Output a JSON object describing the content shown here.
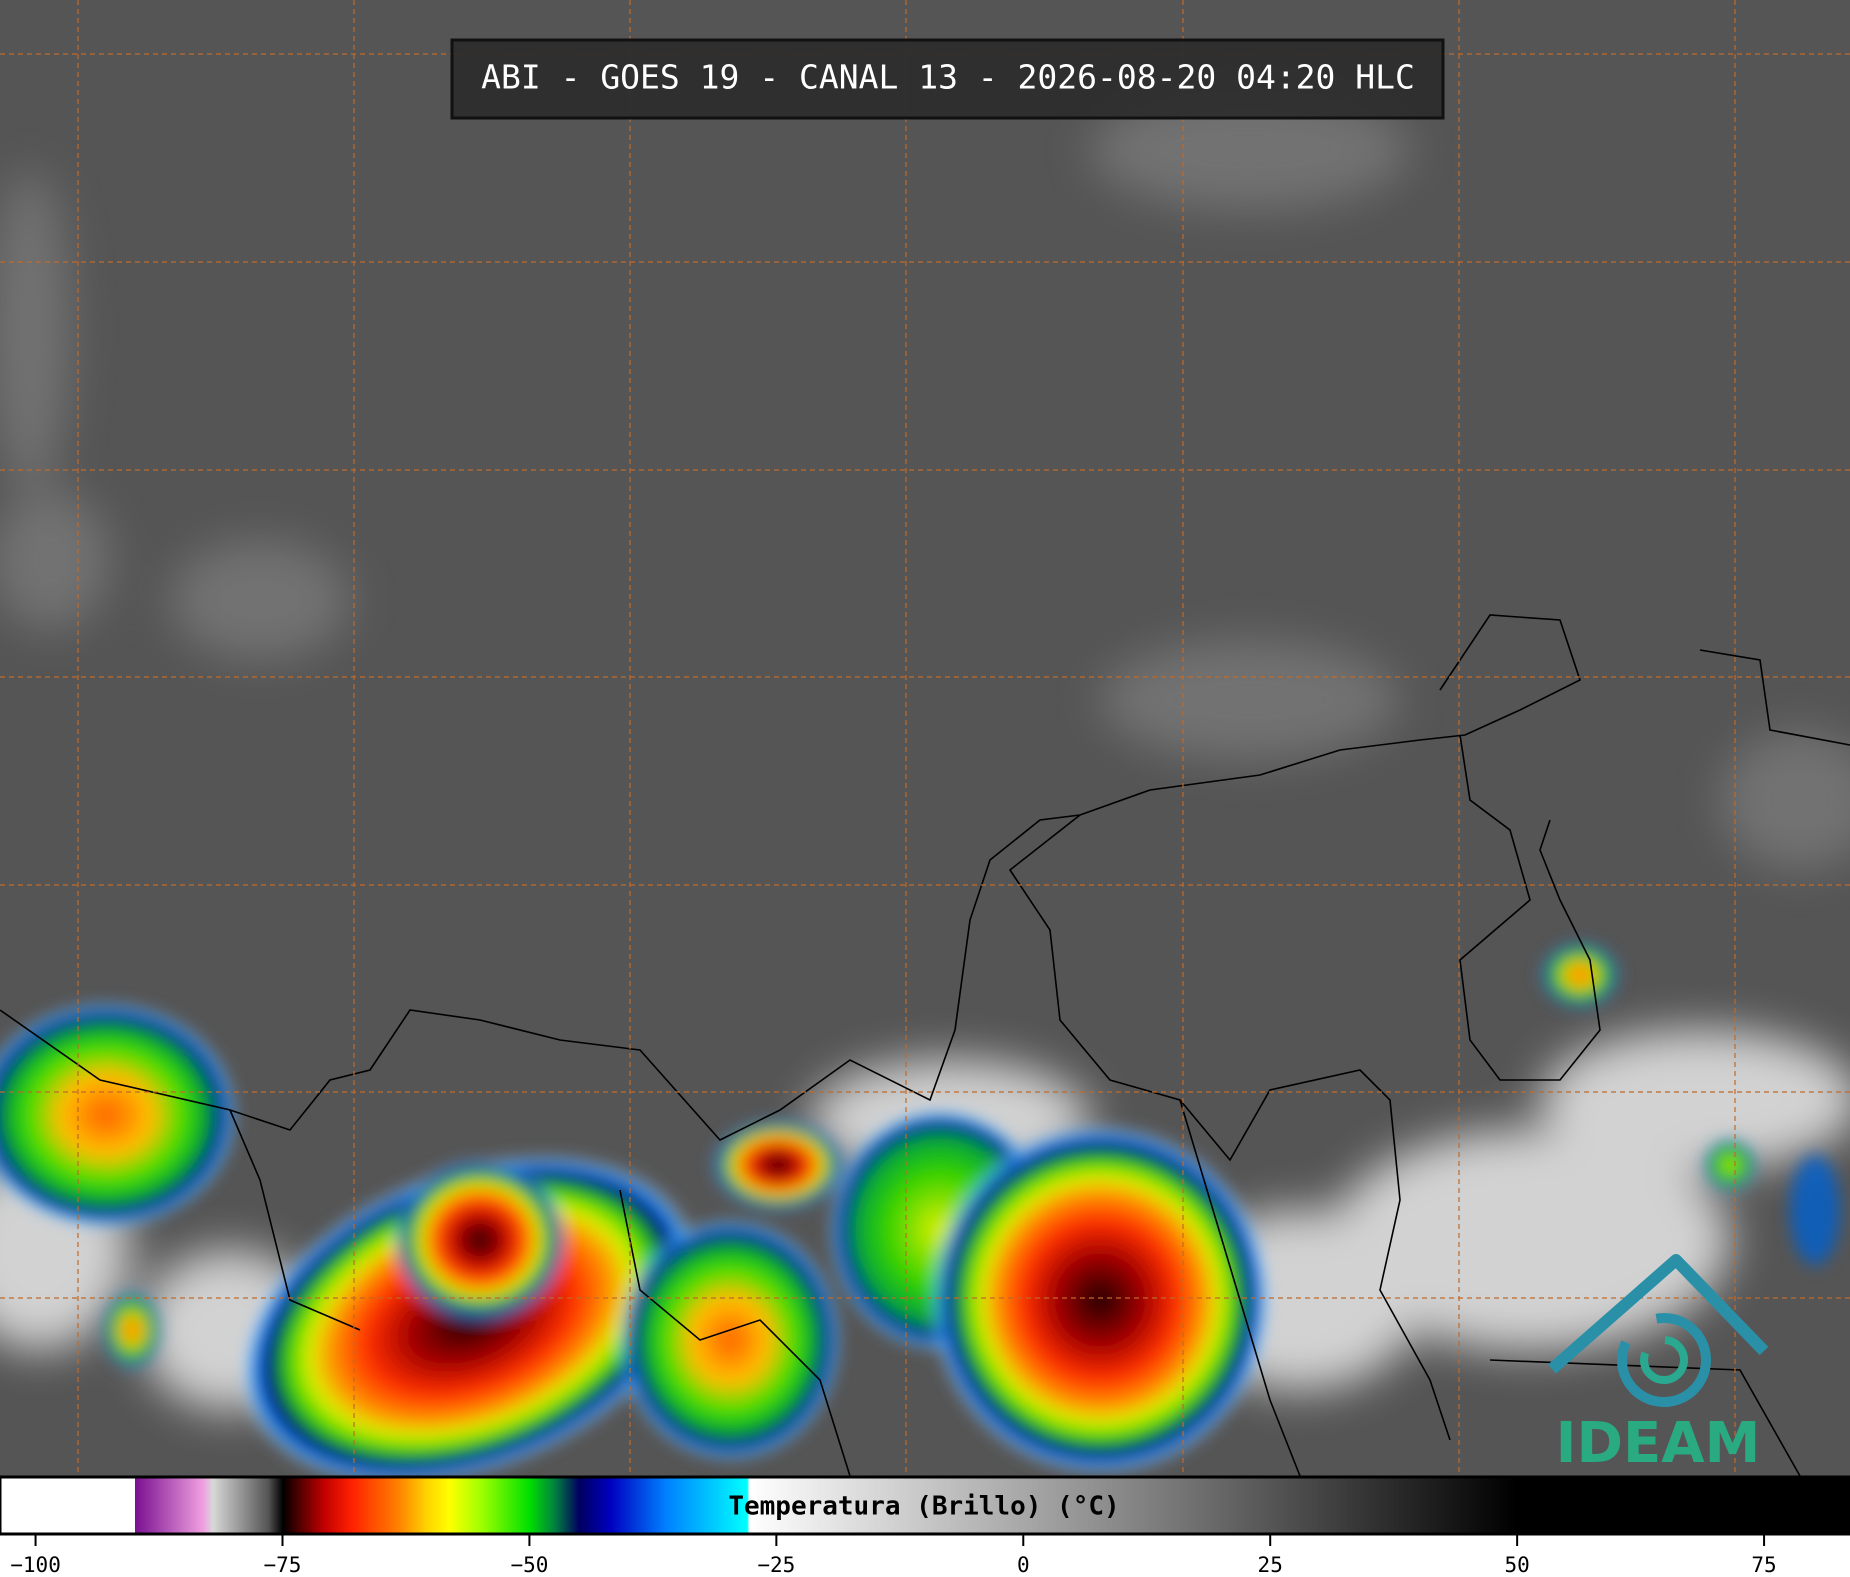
{
  "header": {
    "title": "ABI - GOES 19 - CANAL 13 - 2026-08-20 04:20 HLC"
  },
  "colorbar": {
    "label": "Temperatura (Brillo) (°C)",
    "range": [
      -103.6,
      83.7
    ],
    "ticks": [
      {
        "value": -100,
        "label": "−100"
      },
      {
        "value": -75,
        "label": "−75"
      },
      {
        "value": -50,
        "label": "−50"
      },
      {
        "value": -25,
        "label": "−25"
      },
      0,
      25,
      50,
      75
    ]
  },
  "logo": {
    "text": "IDEAM"
  }
}
